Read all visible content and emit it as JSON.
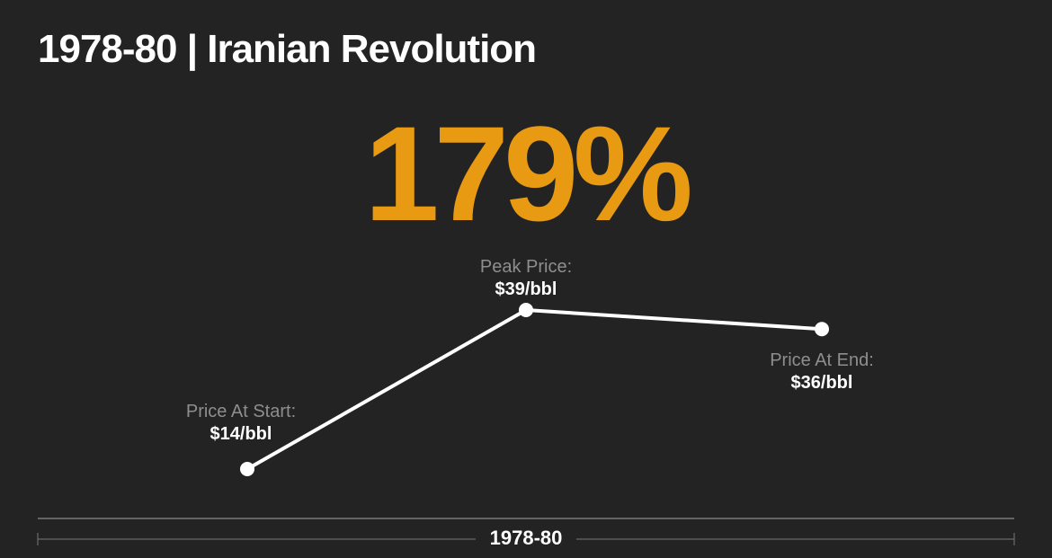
{
  "title": "1978-80 | Iranian Revolution",
  "headline": "179%",
  "colors": {
    "background": "#232323",
    "accent": "#e89a12",
    "line": "#ffffff",
    "caption": "#8e8e8e",
    "axis": "#8a8a8a"
  },
  "chart_data": {
    "type": "line",
    "title": "1978-80 | Iranian Revolution",
    "xlabel": "1978-80",
    "ylabel": "",
    "unit": "$/bbl",
    "points": [
      {
        "caption": "Price At Start:",
        "value": 14,
        "value_label": "$14/bbl"
      },
      {
        "caption": "Peak Price:",
        "value": 39,
        "value_label": "$39/bbl"
      },
      {
        "caption": "Price At End:",
        "value": 36,
        "value_label": "$36/bbl"
      }
    ],
    "ylim": [
      14,
      39
    ],
    "grid": false,
    "legend": "none"
  }
}
